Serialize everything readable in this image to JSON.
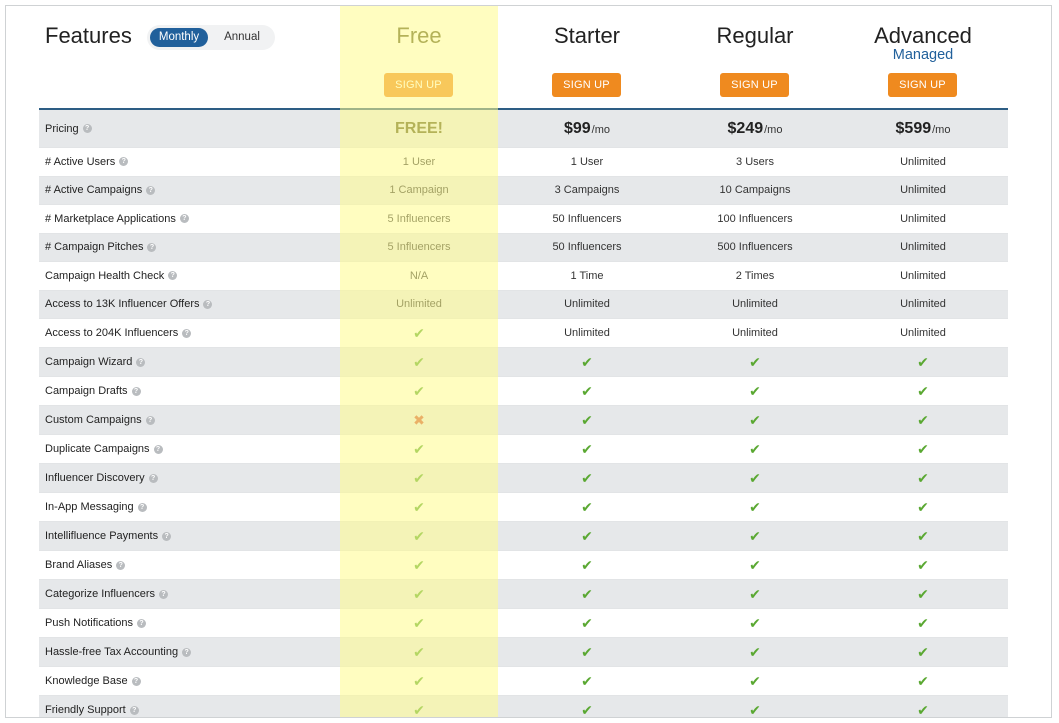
{
  "header": {
    "features_title": "Features",
    "toggle": {
      "monthly": "Monthly",
      "annual": "Annual",
      "selected": "Monthly"
    }
  },
  "plans": [
    {
      "name": "Free",
      "subtitle": "",
      "signup": "SIGN UP"
    },
    {
      "name": "Starter",
      "subtitle": "",
      "signup": "SIGN UP"
    },
    {
      "name": "Regular",
      "subtitle": "",
      "signup": "SIGN UP"
    },
    {
      "name": "Advanced",
      "subtitle": "Managed",
      "signup": "SIGN UP"
    }
  ],
  "pricing": {
    "label": "Pricing",
    "values": [
      {
        "amount": "FREE!",
        "unit": ""
      },
      {
        "amount": "$99",
        "unit": "/mo"
      },
      {
        "amount": "$249",
        "unit": "/mo"
      },
      {
        "amount": "$599",
        "unit": "/mo"
      }
    ]
  },
  "features": [
    {
      "label": "# Active Users",
      "values": [
        "1 User",
        "1 User",
        "3 Users",
        "Unlimited"
      ]
    },
    {
      "label": "# Active Campaigns",
      "values": [
        "1 Campaign",
        "3 Campaigns",
        "10 Campaigns",
        "Unlimited"
      ]
    },
    {
      "label": "# Marketplace Applications",
      "values": [
        "5 Influencers",
        "50 Influencers",
        "100 Influencers",
        "Unlimited"
      ]
    },
    {
      "label": "# Campaign Pitches",
      "values": [
        "5 Influencers",
        "50 Influencers",
        "500 Influencers",
        "Unlimited"
      ]
    },
    {
      "label": "Campaign Health Check",
      "values": [
        "N/A",
        "1 Time",
        "2 Times",
        "Unlimited"
      ]
    },
    {
      "label": "Access to 13K Influencer Offers",
      "values": [
        "Unlimited",
        "Unlimited",
        "Unlimited",
        "Unlimited"
      ]
    },
    {
      "label": "Access to 204K Influencers",
      "values": [
        "check",
        "Unlimited",
        "Unlimited",
        "Unlimited"
      ]
    },
    {
      "label": "Campaign Wizard",
      "values": [
        "check",
        "check",
        "check",
        "check"
      ]
    },
    {
      "label": "Campaign Drafts",
      "values": [
        "check",
        "check",
        "check",
        "check"
      ]
    },
    {
      "label": "Custom Campaigns",
      "values": [
        "cross",
        "check",
        "check",
        "check"
      ]
    },
    {
      "label": "Duplicate Campaigns",
      "values": [
        "check",
        "check",
        "check",
        "check"
      ]
    },
    {
      "label": "Influencer Discovery",
      "values": [
        "check",
        "check",
        "check",
        "check"
      ]
    },
    {
      "label": "In-App Messaging",
      "values": [
        "check",
        "check",
        "check",
        "check"
      ]
    },
    {
      "label": "Intellifluence Payments",
      "values": [
        "check",
        "check",
        "check",
        "check"
      ]
    },
    {
      "label": "Brand Aliases",
      "values": [
        "check",
        "check",
        "check",
        "check"
      ]
    },
    {
      "label": "Categorize Influencers",
      "values": [
        "check",
        "check",
        "check",
        "check"
      ]
    },
    {
      "label": "Push Notifications",
      "values": [
        "check",
        "check",
        "check",
        "check"
      ]
    },
    {
      "label": "Hassle-free Tax Accounting",
      "values": [
        "check",
        "check",
        "check",
        "check"
      ]
    },
    {
      "label": "Knowledge Base",
      "values": [
        "check",
        "check",
        "check",
        "check"
      ]
    },
    {
      "label": "Friendly Support",
      "values": [
        "check",
        "check",
        "check",
        "check"
      ]
    }
  ],
  "icons": {
    "check": "check-icon",
    "cross": "cross-icon",
    "help": "help-icon"
  },
  "colors": {
    "accent": "#21609b",
    "signup": "#ef8a1f",
    "check": "#5aa832",
    "cross": "#d0563b",
    "free_highlight": "#fffc8c"
  }
}
